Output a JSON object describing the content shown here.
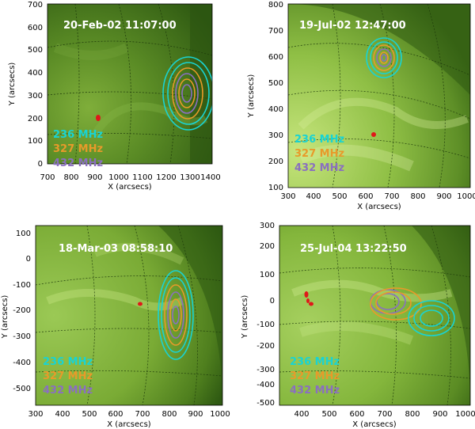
{
  "figure": {
    "panels": [
      {
        "title": "20-Feb-02  11:07:00",
        "xlabel": "X (arcsecs)",
        "ylabel": "Y (arcsecs)",
        "xticks": [
          "700",
          "800",
          "900",
          "1000",
          "1100",
          "1200",
          "1300",
          "1400"
        ],
        "yticks": [
          "0",
          "100",
          "200",
          "300",
          "400",
          "500",
          "600",
          "700"
        ],
        "legend": [
          "236  MHz",
          "327  MHz",
          "432  MHz"
        ]
      },
      {
        "title": "19-Jul-02  12:47:00",
        "xlabel": "X (arcsecs)",
        "ylabel": "Y (arcsecs)",
        "xticks": [
          "300",
          "400",
          "500",
          "600",
          "700",
          "800",
          "900",
          "1000"
        ],
        "yticks": [
          "100",
          "200",
          "300",
          "400",
          "500",
          "600",
          "700",
          "800"
        ],
        "legend": [
          "236  MHz",
          "327  MHz",
          "432  MHz"
        ]
      },
      {
        "title": "18-Mar-03  08:58:10",
        "xlabel": "X (arcsecs)",
        "ylabel": "Y (arcsecs)",
        "xticks": [
          "300",
          "400",
          "500",
          "600",
          "700",
          "800",
          "900",
          "1000"
        ],
        "yticks": [
          "100",
          "0",
          "-100",
          "-200",
          "-300",
          "-400",
          "-500"
        ],
        "legend": [
          "236  MHz",
          "327  MHz",
          "432  MHz"
        ]
      },
      {
        "title": "25-Jul-04  13:22:50",
        "xlabel": "X (arcsecs)",
        "ylabel": "Y (arcsecs)",
        "xticks": [
          "400",
          "500",
          "600",
          "700",
          "800",
          "900",
          "1000"
        ],
        "yticks": [
          "300",
          "200",
          "100",
          "0",
          "-100",
          "-200",
          "-300",
          "-400",
          "-500"
        ],
        "legend": [
          "236  MHz",
          "327  MHz",
          "432  MHz"
        ]
      }
    ],
    "colors": {
      "c236": "#19d3d3",
      "c327": "#e89a2a",
      "c432": "#8a6fc0",
      "flare": "#e0181a",
      "sun_dark": "#2f5a12",
      "sun_light": "#b9dc6f"
    }
  }
}
